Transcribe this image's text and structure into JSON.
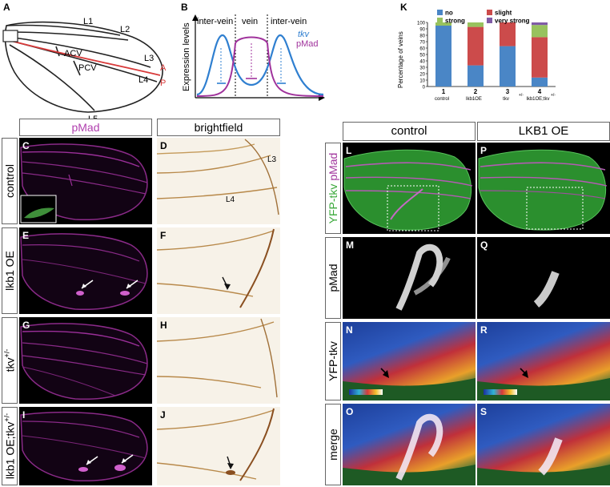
{
  "panel_labels": {
    "A": "A",
    "B": "B",
    "K": "K",
    "C": "C",
    "D": "D",
    "E": "E",
    "F": "F",
    "G": "G",
    "H": "H",
    "I": "I",
    "J": "J",
    "L": "L",
    "M": "M",
    "N": "N",
    "O": "O",
    "P": "P",
    "Q": "Q",
    "R": "R",
    "S": "S"
  },
  "panel_a": {
    "veins": [
      "L1",
      "L2",
      "L3",
      "L4",
      "L5"
    ],
    "crossveins": [
      "ACV",
      "PCV"
    ],
    "axis": {
      "anterior": "A",
      "posterior": "P"
    }
  },
  "panel_b": {
    "regions": [
      "inter-vein",
      "vein",
      "inter-vein"
    ],
    "ylabel": "Expression levels",
    "legend": {
      "tkv": "tkv",
      "pmad": "pMad"
    },
    "colors": {
      "tkv": "#2f7fd0",
      "pmad": "#a0339c"
    }
  },
  "headers": {
    "left_pmad": "pMad",
    "left_bf": "brightfield",
    "right_control": "control",
    "right_lkb1": "LKB1 OE"
  },
  "row_labels": {
    "control": "control",
    "lkb1oe": "lkb1 OE",
    "tkv_base": "tkv",
    "tkv_sup": "+/-",
    "lkb1tkv_base": "lkb1 OE;tkv",
    "lkb1tkv_sup": "+/-"
  },
  "right_row_labels": {
    "yfp_tkv": "YFP-tkv",
    "pmad": "pMad",
    "yfp_tkv_2": "YFP-tkv",
    "merge": "merge"
  },
  "image_labels": {
    "L3": "L3",
    "L4": "L4"
  },
  "chart_data": {
    "type": "bar",
    "stacked": true,
    "categories": [
      "1",
      "2",
      "3",
      "4"
    ],
    "category_labels": [
      "control",
      "lkb1OE",
      "tkv",
      "lkb1OE;tkv"
    ],
    "category_superscripts": [
      "",
      "",
      "+/-",
      "+/-"
    ],
    "series": [
      {
        "name": "no",
        "color": "#4a86c6",
        "values": [
          95,
          33,
          63,
          14
        ]
      },
      {
        "name": "slight",
        "color": "#cc4b4b",
        "values": [
          0,
          60,
          37,
          63
        ]
      },
      {
        "name": "strong",
        "color": "#98c25e",
        "values": [
          5,
          7,
          0,
          19
        ]
      },
      {
        "name": "very strong",
        "color": "#7f5ba6",
        "values": [
          0,
          0,
          0,
          4
        ]
      }
    ],
    "ylabel": "Percentage of veins",
    "yticks": [
      "0",
      "10",
      "20",
      "30",
      "40",
      "50",
      "60",
      "70",
      "80",
      "90",
      "100"
    ],
    "ylim": [
      0,
      100
    ],
    "legend_position": "top"
  }
}
